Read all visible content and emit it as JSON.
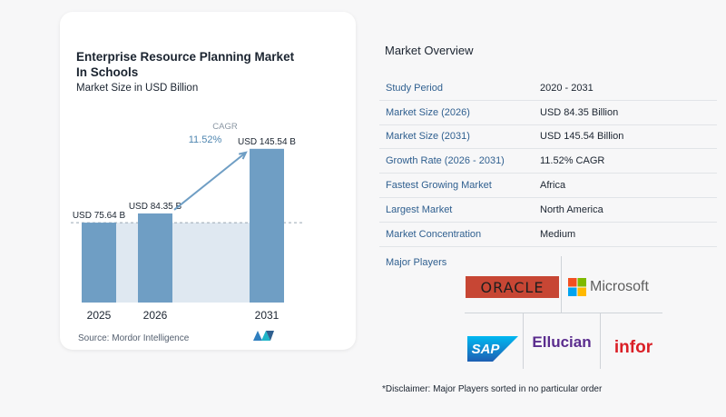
{
  "chart": {
    "title": "Enterprise Resource Planning Market In Schools",
    "subtitle": "Market Size in USD Billion",
    "source": "Source:  Mordor Intelligence"
  },
  "chart_data": {
    "type": "bar",
    "categories": [
      "2025",
      "2026",
      "2031"
    ],
    "values": [
      75.64,
      84.35,
      145.54
    ],
    "data_labels": [
      "USD 75.64 B",
      "USD 84.35 B",
      "USD 145.54 B"
    ],
    "title": "Enterprise Resource Planning Market In Schools",
    "subtitle": "Market Size in USD Billion",
    "annotation": {
      "label": "CAGR",
      "value": "11.52%"
    },
    "colors": {
      "bar": "#6f9ec4",
      "bar_dark": "#4f86b0",
      "band": "#dfe8f1",
      "arrow": "#6f9ec4"
    },
    "grid": false,
    "ylim": [
      0,
      160
    ]
  },
  "overview": {
    "title": "Market Overview",
    "rows": [
      {
        "key": "Study Period",
        "value": "2020 - 2031"
      },
      {
        "key": "Market Size (2026)",
        "value": "USD 84.35 Billion"
      },
      {
        "key": "Market Size (2031)",
        "value": "USD 145.54 Billion"
      },
      {
        "key": "Growth Rate (2026 - 2031)",
        "value": "11.52% CAGR"
      },
      {
        "key": "Fastest Growing Market",
        "value": "Africa"
      },
      {
        "key": "Largest Market",
        "value": "North America"
      },
      {
        "key": "Market Concentration",
        "value": "Medium"
      }
    ]
  },
  "players": {
    "title": "Major Players",
    "logos": [
      "ORACLE",
      "Microsoft",
      "SAP",
      "Ellucian",
      "infor"
    ]
  },
  "disclaimer": "*Disclaimer: Major Players sorted in no particular order"
}
